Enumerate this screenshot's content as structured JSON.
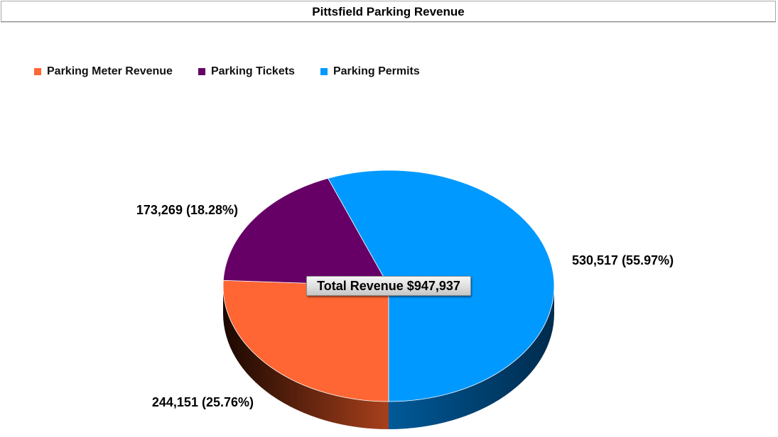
{
  "chart_data": {
    "type": "pie",
    "title": "Pittsfield Parking Revenue",
    "series": [
      {
        "name": "Parking Meter Revenue",
        "value": 244151,
        "label": "244,151 (25.76%)",
        "color": "#ff6633",
        "side_color": "#a8401c"
      },
      {
        "name": "Parking Tickets",
        "value": 173269,
        "label": "173,269 (18.28%)",
        "color": "#660066",
        "side_color": "#330033"
      },
      {
        "name": "Parking Permits",
        "value": 530517,
        "label": "530,517 (55.97%)",
        "color": "#0099ff",
        "side_color": "#005a99"
      }
    ],
    "total_label": "Total Revenue $947,937",
    "legend_position": "top-left"
  }
}
